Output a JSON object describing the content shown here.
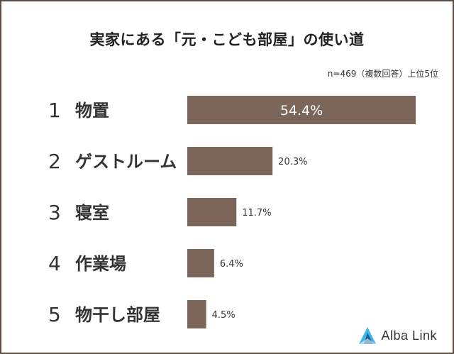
{
  "title": "実家にある「元・こども部屋」の使い道",
  "note": "n=469（複数回答）上位5位",
  "brand": "Alba Link",
  "colors": {
    "bar": "#7b6659",
    "inside_label": "#ffffff",
    "outside_label": "#333333",
    "rank_label": "#333333",
    "logo_light": "#3fb6e8",
    "logo_dark": "#1d5f9e"
  },
  "chart_data": {
    "type": "bar",
    "orientation": "horizontal",
    "categories": [
      "物置",
      "ゲストルーム",
      "寝室",
      "作業場",
      "物干し部屋"
    ],
    "ranks": [
      "1",
      "2",
      "3",
      "4",
      "5"
    ],
    "values": [
      54.4,
      20.3,
      11.7,
      6.4,
      4.5
    ],
    "value_labels": [
      "54.4%",
      "20.3%",
      "11.7%",
      "6.4%",
      "4.5%"
    ],
    "xlim": [
      0,
      60
    ],
    "unit": "%",
    "grid": false,
    "legend": false
  }
}
